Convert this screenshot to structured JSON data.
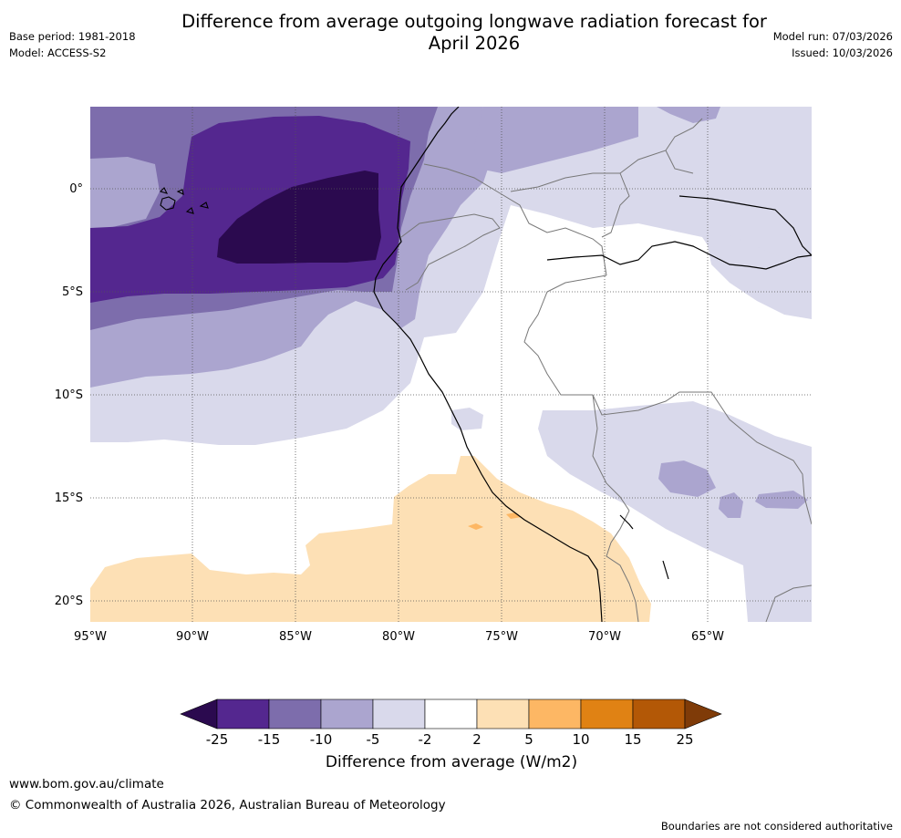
{
  "title": "Difference from average outgoing longwave radiation forecast for\nApril 2026",
  "base_period": "Base period: 1981-2018",
  "model": "Model: ACCESS-S2",
  "model_run": "Model run: 07/03/2026",
  "issued": "Issued: 10/03/2026",
  "lon_ticks": [
    "95°W",
    "90°W",
    "85°W",
    "80°W",
    "75°W",
    "70°W",
    "65°W"
  ],
  "lat_ticks": [
    "0°",
    "5°S",
    "10°S",
    "15°S",
    "20°S"
  ],
  "colorbar": {
    "label": "Difference from average (W/m2)",
    "ticks": [
      "-25",
      "-15",
      "-10",
      "-5",
      "-2",
      "2",
      "5",
      "10",
      "15",
      "25"
    ],
    "colors": [
      "#2b0a4f",
      "#54278f",
      "#7d6dac",
      "#aba5cf",
      "#d9d9eb",
      "#ffffff",
      "#fde0b5",
      "#fdb764",
      "#e08214",
      "#b35806",
      "#7f3b08"
    ]
  },
  "website": "www.bom.gov.au/climate",
  "copyright": "© Commonwealth of Australia 2026, Australian Bureau of Meteorology",
  "disclaimer": "Boundaries are not considered authoritative"
}
